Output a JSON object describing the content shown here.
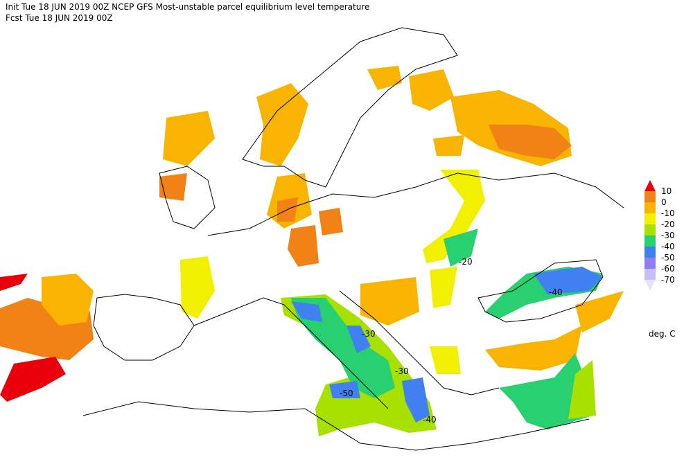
{
  "header": {
    "line1": "Init  Tue 18 JUN 2019 00Z   NCEP GFS Most-unstable parcel equilibrium level temperature",
    "line2": "Fcst Tue 18 JUN 2019 00Z"
  },
  "legend": {
    "labels": [
      "10",
      "0",
      "-10",
      "-20",
      "-30",
      "-40",
      "-50",
      "-60",
      "-70"
    ],
    "colors": [
      "#e8000a",
      "#f08216",
      "#f8b400",
      "#f0f000",
      "#a8e000",
      "#28d070",
      "#4080f0",
      "#8c80f0",
      "#c4c0f8",
      "#e4e4fc"
    ],
    "unit": "deg. C"
  },
  "contour_labels": [
    "-40",
    "-30",
    "-30",
    "-50",
    "-40",
    "-20"
  ]
}
